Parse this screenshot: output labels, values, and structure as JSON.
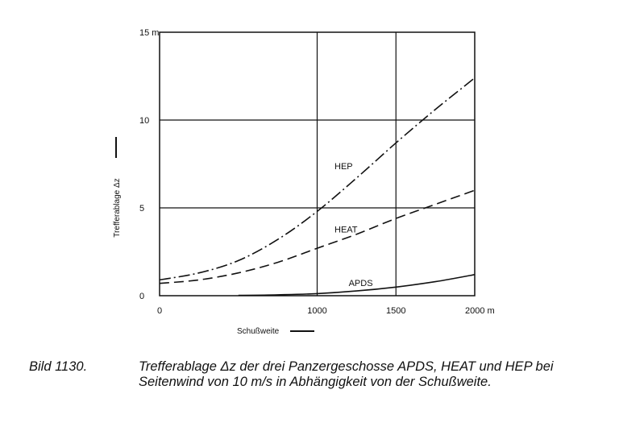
{
  "chart_data": {
    "type": "line",
    "ylabel": "Trefferablage Δz",
    "xlabel": "Schußweite",
    "xlim": [
      0,
      2000
    ],
    "ylim": [
      0,
      15
    ],
    "grid": true,
    "x_ticks": [
      {
        "value": 0,
        "label": "0"
      },
      {
        "value": 1000,
        "label": "1000"
      },
      {
        "value": 1500,
        "label": "1500"
      },
      {
        "value": 2000,
        "label": "2000 m"
      }
    ],
    "y_ticks": [
      {
        "value": 0,
        "label": "0"
      },
      {
        "value": 5,
        "label": "5"
      },
      {
        "value": 10,
        "label": "10"
      },
      {
        "value": 15,
        "label": "15 m"
      }
    ],
    "series": [
      {
        "name": "HEP",
        "line_style": "dash-dot",
        "x": [
          0,
          250,
          500,
          750,
          1000,
          1250,
          1500,
          1750,
          2000
        ],
        "y": [
          0.9,
          1.3,
          2.0,
          3.2,
          4.8,
          6.7,
          8.7,
          10.6,
          12.4
        ]
      },
      {
        "name": "HEAT",
        "line_style": "dashed",
        "x": [
          0,
          250,
          500,
          750,
          1000,
          1250,
          1500,
          1750,
          2000
        ],
        "y": [
          0.7,
          0.9,
          1.3,
          1.9,
          2.7,
          3.5,
          4.4,
          5.2,
          6.0
        ]
      },
      {
        "name": "APDS",
        "line_style": "solid",
        "x": [
          500,
          750,
          1000,
          1250,
          1500,
          1750,
          2000
        ],
        "y": [
          0.02,
          0.05,
          0.12,
          0.27,
          0.49,
          0.8,
          1.2
        ]
      }
    ]
  },
  "caption": {
    "label": "Bild 1130.",
    "text": "Trefferablage Δz der drei Panzergeschosse APDS, HEAT und HEP bei Seitenwind von 10 m/s in Abhängigkeit von der Schußweite."
  }
}
